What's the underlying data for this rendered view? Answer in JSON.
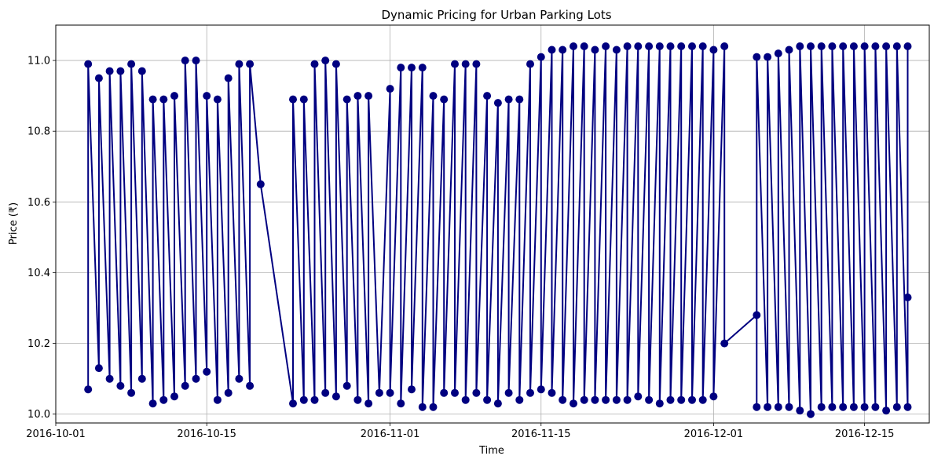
{
  "chart_data": {
    "type": "line",
    "title": "Dynamic Pricing for Urban Parking Lots",
    "xlabel": "Time",
    "ylabel": "Price (₹)",
    "x_range": [
      "2016-10-01",
      "2016-12-21"
    ],
    "ylim": [
      9.975,
      11.1
    ],
    "grid": true,
    "color": "#000080",
    "marker": "circle",
    "x_ticks": [
      {
        "date": "2016-10-01",
        "label": "2016-10-01"
      },
      {
        "date": "2016-10-15",
        "label": "2016-10-15"
      },
      {
        "date": "2016-11-01",
        "label": "2016-11-01"
      },
      {
        "date": "2016-11-15",
        "label": "2016-11-15"
      },
      {
        "date": "2016-12-01",
        "label": "2016-12-01"
      },
      {
        "date": "2016-12-15",
        "label": "2016-12-15"
      }
    ],
    "y_ticks": [
      {
        "value": 10.0,
        "label": "10.0"
      },
      {
        "value": 10.2,
        "label": "10.2"
      },
      {
        "value": 10.4,
        "label": "10.4"
      },
      {
        "value": 10.6,
        "label": "10.6"
      },
      {
        "value": 10.8,
        "label": "10.8"
      },
      {
        "value": 11.0,
        "label": "11.0"
      }
    ],
    "series": [
      {
        "points": [
          [
            "2016-10-04",
            10.07
          ],
          [
            "2016-10-04",
            10.99
          ],
          [
            "2016-10-05",
            10.13
          ],
          [
            "2016-10-05",
            10.95
          ],
          [
            "2016-10-06",
            10.1
          ],
          [
            "2016-10-06",
            10.97
          ],
          [
            "2016-10-07",
            10.08
          ],
          [
            "2016-10-07",
            10.97
          ],
          [
            "2016-10-08",
            10.06
          ],
          [
            "2016-10-08",
            10.99
          ],
          [
            "2016-10-09",
            10.1
          ],
          [
            "2016-10-09",
            10.97
          ],
          [
            "2016-10-10",
            10.03
          ],
          [
            "2016-10-10",
            10.89
          ],
          [
            "2016-10-11",
            10.04
          ],
          [
            "2016-10-11",
            10.89
          ],
          [
            "2016-10-12",
            10.05
          ],
          [
            "2016-10-12",
            10.9
          ],
          [
            "2016-10-13",
            10.08
          ],
          [
            "2016-10-13",
            11.0
          ],
          [
            "2016-10-14",
            10.1
          ],
          [
            "2016-10-14",
            11.0
          ],
          [
            "2016-10-15",
            10.12
          ],
          [
            "2016-10-15",
            10.9
          ],
          [
            "2016-10-16",
            10.04
          ],
          [
            "2016-10-16",
            10.89
          ],
          [
            "2016-10-17",
            10.06
          ],
          [
            "2016-10-17",
            10.95
          ],
          [
            "2016-10-18",
            10.1
          ],
          [
            "2016-10-18",
            10.99
          ],
          [
            "2016-10-19",
            10.08
          ],
          [
            "2016-10-19",
            10.99
          ],
          [
            "2016-10-20",
            10.65
          ],
          [
            "2016-10-23",
            10.03
          ],
          [
            "2016-10-23",
            10.89
          ],
          [
            "2016-10-24",
            10.04
          ],
          [
            "2016-10-24",
            10.89
          ],
          [
            "2016-10-25",
            10.04
          ],
          [
            "2016-10-25",
            10.99
          ],
          [
            "2016-10-26",
            10.06
          ],
          [
            "2016-10-26",
            11.0
          ],
          [
            "2016-10-27",
            10.05
          ],
          [
            "2016-10-27",
            10.99
          ],
          [
            "2016-10-28",
            10.08
          ],
          [
            "2016-10-28",
            10.89
          ],
          [
            "2016-10-29",
            10.04
          ],
          [
            "2016-10-29",
            10.9
          ],
          [
            "2016-10-30",
            10.03
          ],
          [
            "2016-10-30",
            10.9
          ],
          [
            "2016-10-31",
            10.06
          ],
          [
            "2016-11-01",
            10.92
          ],
          [
            "2016-11-01",
            10.06
          ],
          [
            "2016-11-02",
            10.98
          ],
          [
            "2016-11-02",
            10.03
          ],
          [
            "2016-11-03",
            10.98
          ],
          [
            "2016-11-03",
            10.07
          ],
          [
            "2016-11-04",
            10.98
          ],
          [
            "2016-11-04",
            10.02
          ],
          [
            "2016-11-05",
            10.9
          ],
          [
            "2016-11-05",
            10.02
          ],
          [
            "2016-11-06",
            10.89
          ],
          [
            "2016-11-06",
            10.06
          ],
          [
            "2016-11-07",
            10.99
          ],
          [
            "2016-11-07",
            10.06
          ],
          [
            "2016-11-08",
            10.99
          ],
          [
            "2016-11-08",
            10.04
          ],
          [
            "2016-11-09",
            10.99
          ],
          [
            "2016-11-09",
            10.06
          ],
          [
            "2016-11-10",
            10.9
          ],
          [
            "2016-11-10",
            10.04
          ],
          [
            "2016-11-11",
            10.88
          ],
          [
            "2016-11-11",
            10.03
          ],
          [
            "2016-11-12",
            10.89
          ],
          [
            "2016-11-12",
            10.06
          ],
          [
            "2016-11-13",
            10.89
          ],
          [
            "2016-11-13",
            10.04
          ],
          [
            "2016-11-14",
            10.99
          ],
          [
            "2016-11-14",
            10.06
          ],
          [
            "2016-11-15",
            11.01
          ],
          [
            "2016-11-15",
            10.07
          ],
          [
            "2016-11-16",
            11.03
          ],
          [
            "2016-11-16",
            10.06
          ],
          [
            "2016-11-17",
            11.03
          ],
          [
            "2016-11-17",
            10.04
          ],
          [
            "2016-11-18",
            11.04
          ],
          [
            "2016-11-18",
            10.03
          ],
          [
            "2016-11-19",
            11.04
          ],
          [
            "2016-11-19",
            10.04
          ],
          [
            "2016-11-20",
            11.03
          ],
          [
            "2016-11-20",
            10.04
          ],
          [
            "2016-11-21",
            11.04
          ],
          [
            "2016-11-21",
            10.04
          ],
          [
            "2016-11-22",
            11.03
          ],
          [
            "2016-11-22",
            10.04
          ],
          [
            "2016-11-23",
            11.04
          ],
          [
            "2016-11-23",
            10.04
          ],
          [
            "2016-11-24",
            11.04
          ],
          [
            "2016-11-24",
            10.05
          ],
          [
            "2016-11-25",
            11.04
          ],
          [
            "2016-11-25",
            10.04
          ],
          [
            "2016-11-26",
            11.04
          ],
          [
            "2016-11-26",
            10.03
          ],
          [
            "2016-11-27",
            11.04
          ],
          [
            "2016-11-27",
            10.04
          ],
          [
            "2016-11-28",
            11.04
          ],
          [
            "2016-11-28",
            10.04
          ],
          [
            "2016-11-29",
            11.04
          ],
          [
            "2016-11-29",
            10.04
          ],
          [
            "2016-11-30",
            11.04
          ],
          [
            "2016-11-30",
            10.04
          ],
          [
            "2016-12-01",
            11.03
          ],
          [
            "2016-12-01",
            10.05
          ],
          [
            "2016-12-02",
            11.04
          ],
          [
            "2016-12-02",
            10.2
          ],
          [
            "2016-12-05",
            10.28
          ],
          [
            "2016-12-05",
            10.02
          ],
          [
            "2016-12-05",
            11.01
          ],
          [
            "2016-12-06",
            10.02
          ],
          [
            "2016-12-06",
            11.01
          ],
          [
            "2016-12-07",
            10.02
          ],
          [
            "2016-12-07",
            11.02
          ],
          [
            "2016-12-08",
            10.02
          ],
          [
            "2016-12-08",
            11.03
          ],
          [
            "2016-12-09",
            10.01
          ],
          [
            "2016-12-09",
            11.04
          ],
          [
            "2016-12-10",
            10.0
          ],
          [
            "2016-12-10",
            11.04
          ],
          [
            "2016-12-11",
            10.02
          ],
          [
            "2016-12-11",
            11.04
          ],
          [
            "2016-12-12",
            10.02
          ],
          [
            "2016-12-12",
            11.04
          ],
          [
            "2016-12-13",
            10.02
          ],
          [
            "2016-12-13",
            11.04
          ],
          [
            "2016-12-14",
            10.02
          ],
          [
            "2016-12-14",
            11.04
          ],
          [
            "2016-12-15",
            10.02
          ],
          [
            "2016-12-15",
            11.04
          ],
          [
            "2016-12-16",
            10.02
          ],
          [
            "2016-12-16",
            11.04
          ],
          [
            "2016-12-17",
            10.01
          ],
          [
            "2016-12-17",
            11.04
          ],
          [
            "2016-12-18",
            10.02
          ],
          [
            "2016-12-18",
            11.04
          ],
          [
            "2016-12-19",
            10.02
          ],
          [
            "2016-12-19",
            11.04
          ],
          [
            "2016-12-19",
            10.33
          ]
        ]
      }
    ]
  }
}
